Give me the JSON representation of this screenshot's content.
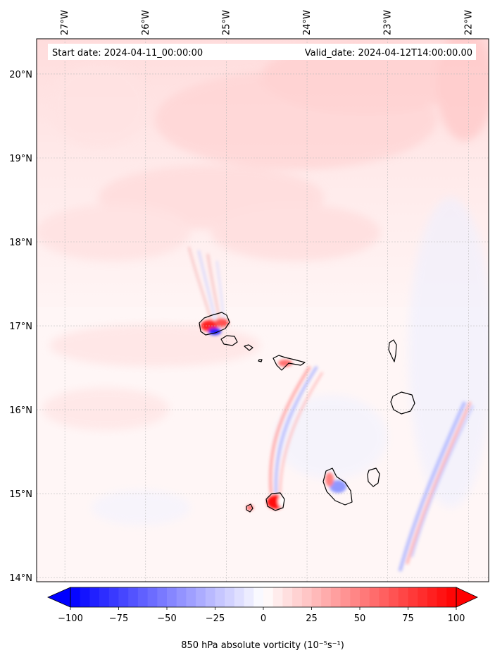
{
  "header": {
    "start_date": "Start date: 2024-04-11_00:00:00",
    "valid_date": "Valid_date: 2024-04-12T14:00:00.00"
  },
  "map": {
    "lon_range": [
      -27.35,
      -21.75
    ],
    "lat_range": [
      13.95,
      20.42
    ],
    "lon_ticks": [
      {
        "value": -27,
        "label": "27°W"
      },
      {
        "value": -26,
        "label": "26°W"
      },
      {
        "value": -25,
        "label": "25°W"
      },
      {
        "value": -24,
        "label": "24°W"
      },
      {
        "value": -23,
        "label": "23°W"
      },
      {
        "value": -22,
        "label": "22°W"
      }
    ],
    "lat_ticks": [
      {
        "value": 14,
        "label": "14°N"
      },
      {
        "value": 15,
        "label": "15°N"
      },
      {
        "value": 16,
        "label": "16°N"
      },
      {
        "value": 17,
        "label": "17°N"
      },
      {
        "value": 18,
        "label": "18°N"
      },
      {
        "value": 19,
        "label": "19°N"
      },
      {
        "value": 20,
        "label": "20°N"
      }
    ],
    "gridlines": true
  },
  "colorbar": {
    "min": -100,
    "max": 100,
    "ticks": [
      "−100",
      "−75",
      "−50",
      "−25",
      "0",
      "25",
      "50",
      "75",
      "100"
    ],
    "label": "850 hPa absolute vorticity (10⁻⁵s⁻¹)",
    "extend": "both",
    "colormap": "bwr"
  },
  "colors": {
    "negative": "#0000ff",
    "neutral": "#ffffff",
    "positive": "#ff0000"
  }
}
